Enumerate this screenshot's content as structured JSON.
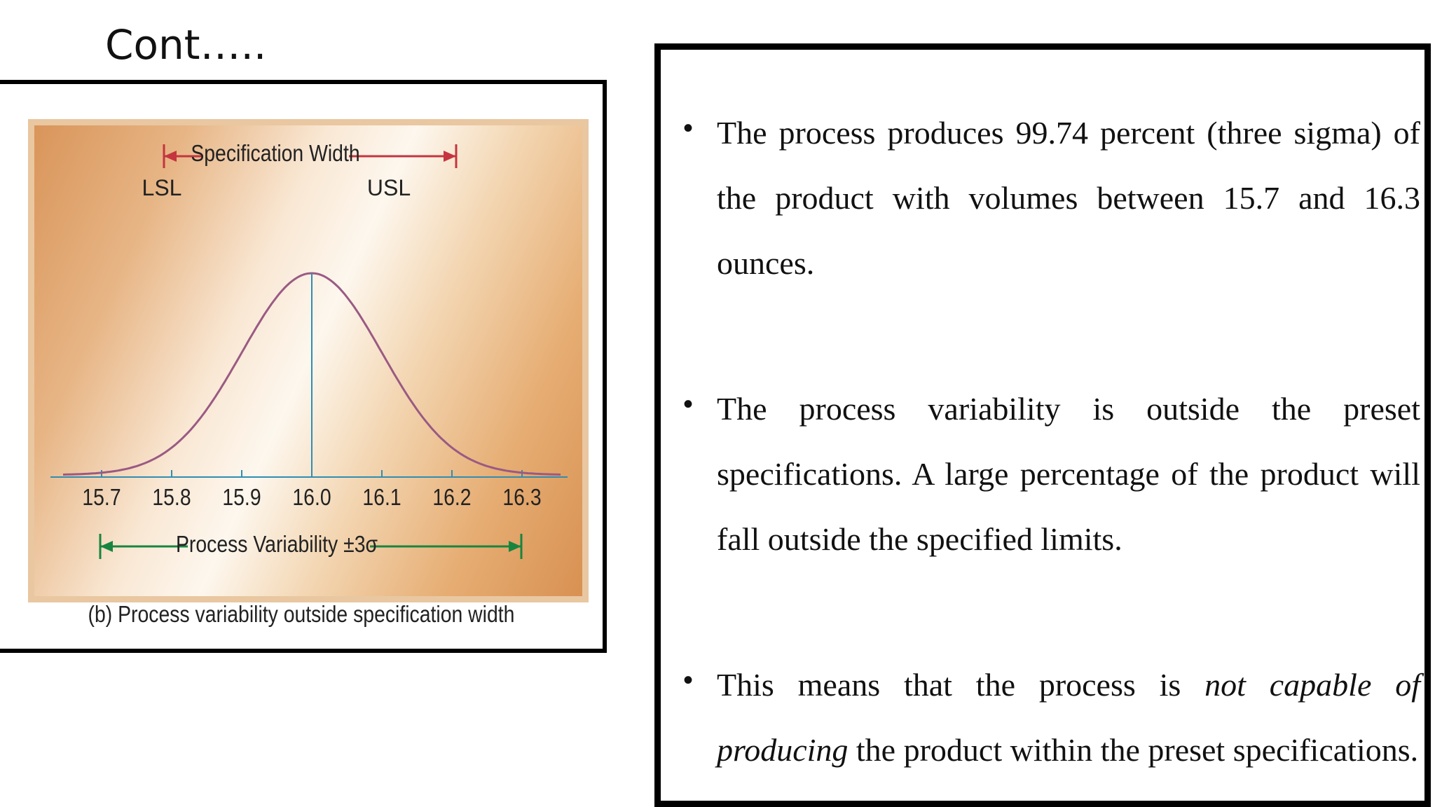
{
  "slide": {
    "title": "Cont….."
  },
  "figure": {
    "caption": "(b) Process variability outside specification width",
    "spec_width_label": "Specification Width",
    "lsl_label": "LSL",
    "usl_label": "USL",
    "process_variability_label": "Process Variability ±3σ",
    "colors": {
      "curve": "#9a5a83",
      "mean_line": "#2f8db3",
      "axis": "#2f8db3",
      "spec_arrow": "#c4353f",
      "process_arrow": "#17853f"
    }
  },
  "chart_data": {
    "type": "line",
    "distribution": "normal",
    "mean": 16.0,
    "sigma": 0.1,
    "x_ticks": [
      "15.7",
      "15.8",
      "15.9",
      "16.0",
      "16.1",
      "16.2",
      "16.3"
    ],
    "xlim": [
      15.7,
      16.3
    ],
    "spec_limits": {
      "LSL": 15.8,
      "USL": 16.2
    },
    "process_limits": [
      15.7,
      16.3
    ],
    "grid": false
  },
  "bullets": [
    {
      "text": "The process produces 99.74 percent (three sigma) of the product with volumes between 15.7 and 16.3 ounces."
    },
    {
      "text": "The process variability is outside the preset specifications. A large percentage of the product will fall outside the specified limits."
    },
    {
      "pre": "This means that the process is ",
      "emphasis": "not capable of producing",
      "post": " the product within the preset specifications."
    }
  ]
}
